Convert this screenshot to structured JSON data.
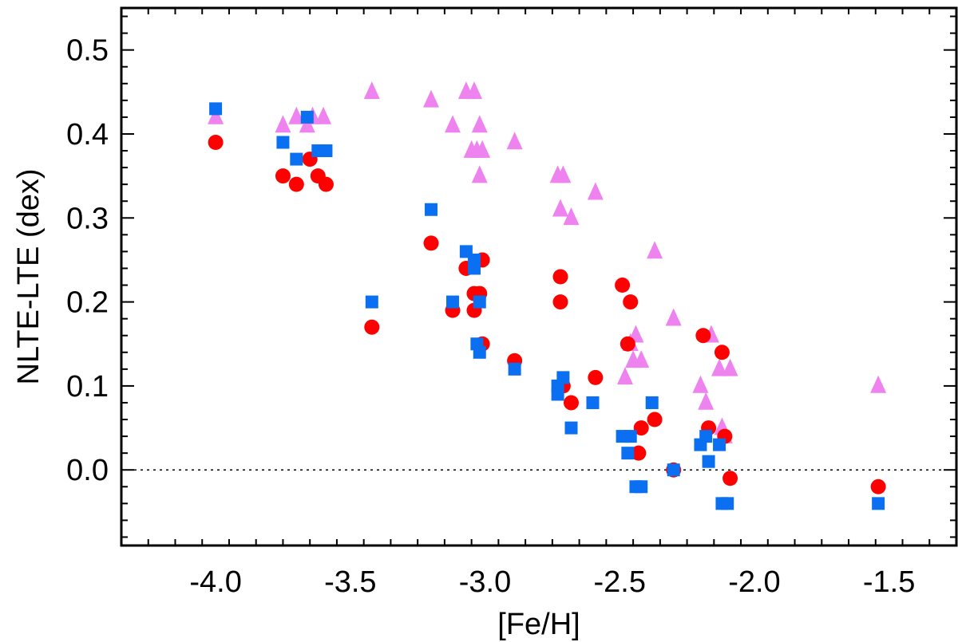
{
  "chart_data": {
    "type": "scatter",
    "title": "",
    "xlabel": "[Fe/H]",
    "ylabel": "NLTE-LTE (dex)",
    "xlim": [
      -4.35,
      -1.25
    ],
    "ylim": [
      -0.09,
      0.55
    ],
    "xticks": [
      -4.0,
      -3.5,
      -3.0,
      -2.5,
      -2.0,
      -1.5
    ],
    "xtick_labels": [
      "-4.0",
      "-3.5",
      "-3.0",
      "-2.5",
      "-2.0",
      "-1.5"
    ],
    "yticks": [
      0.0,
      0.1,
      0.2,
      0.3,
      0.4,
      0.5
    ],
    "ytick_labels": [
      "0.0",
      "0.1",
      "0.2",
      "0.3",
      "0.4",
      "0.5"
    ],
    "reference_line": 0.0,
    "series": [
      {
        "name": "triangles",
        "marker": "triangle",
        "color": "#ee82ee",
        "points": [
          [
            -4.0,
            0.42
          ],
          [
            -3.75,
            0.41
          ],
          [
            -3.7,
            0.42
          ],
          [
            -3.66,
            0.41
          ],
          [
            -3.64,
            0.42
          ],
          [
            -3.6,
            0.42
          ],
          [
            -3.42,
            0.45
          ],
          [
            -3.2,
            0.44
          ],
          [
            -3.12,
            0.41
          ],
          [
            -3.07,
            0.45
          ],
          [
            -3.05,
            0.38
          ],
          [
            -3.04,
            0.45
          ],
          [
            -3.03,
            0.38
          ],
          [
            -3.02,
            0.41
          ],
          [
            -3.02,
            0.35
          ],
          [
            -3.01,
            0.38
          ],
          [
            -2.89,
            0.39
          ],
          [
            -2.73,
            0.35
          ],
          [
            -2.72,
            0.31
          ],
          [
            -2.71,
            0.35
          ],
          [
            -2.68,
            0.3
          ],
          [
            -2.59,
            0.33
          ],
          [
            -2.48,
            0.11
          ],
          [
            -2.46,
            0.15
          ],
          [
            -2.45,
            0.13
          ],
          [
            -2.44,
            0.16
          ],
          [
            -2.42,
            0.13
          ],
          [
            -2.37,
            0.26
          ],
          [
            -2.3,
            0.18
          ],
          [
            -2.2,
            0.1
          ],
          [
            -2.18,
            0.08
          ],
          [
            -2.16,
            0.16
          ],
          [
            -2.13,
            0.12
          ],
          [
            -2.12,
            0.05
          ],
          [
            -2.11,
            0.04
          ],
          [
            -2.09,
            0.12
          ],
          [
            -1.54,
            0.1
          ]
        ]
      },
      {
        "name": "circles",
        "marker": "circle",
        "color": "#ff0000",
        "points": [
          [
            -4.0,
            0.39
          ],
          [
            -3.75,
            0.35
          ],
          [
            -3.7,
            0.34
          ],
          [
            -3.65,
            0.37
          ],
          [
            -3.62,
            0.35
          ],
          [
            -3.59,
            0.34
          ],
          [
            -3.42,
            0.17
          ],
          [
            -3.2,
            0.27
          ],
          [
            -3.12,
            0.19
          ],
          [
            -3.07,
            0.24
          ],
          [
            -3.04,
            0.21
          ],
          [
            -3.04,
            0.19
          ],
          [
            -3.02,
            0.21
          ],
          [
            -3.01,
            0.25
          ],
          [
            -3.01,
            0.15
          ],
          [
            -2.89,
            0.13
          ],
          [
            -2.72,
            0.23
          ],
          [
            -2.72,
            0.2
          ],
          [
            -2.71,
            0.1
          ],
          [
            -2.68,
            0.08
          ],
          [
            -2.59,
            0.11
          ],
          [
            -2.49,
            0.22
          ],
          [
            -2.46,
            0.2
          ],
          [
            -2.47,
            0.15
          ],
          [
            -2.43,
            0.02
          ],
          [
            -2.42,
            0.05
          ],
          [
            -2.37,
            0.06
          ],
          [
            -2.3,
            0.0
          ],
          [
            -2.19,
            0.16
          ],
          [
            -2.17,
            0.05
          ],
          [
            -2.12,
            0.14
          ],
          [
            -2.11,
            0.04
          ],
          [
            -2.09,
            -0.01
          ],
          [
            -1.54,
            -0.02
          ]
        ]
      },
      {
        "name": "squares",
        "marker": "square",
        "color": "#0a6ff0",
        "points": [
          [
            -4.0,
            0.43
          ],
          [
            -3.75,
            0.39
          ],
          [
            -3.7,
            0.37
          ],
          [
            -3.66,
            0.42
          ],
          [
            -3.62,
            0.38
          ],
          [
            -3.59,
            0.38
          ],
          [
            -3.42,
            0.2
          ],
          [
            -3.2,
            0.31
          ],
          [
            -3.12,
            0.2
          ],
          [
            -3.07,
            0.26
          ],
          [
            -3.04,
            0.25
          ],
          [
            -3.04,
            0.24
          ],
          [
            -3.03,
            0.15
          ],
          [
            -3.02,
            0.2
          ],
          [
            -3.02,
            0.14
          ],
          [
            -2.89,
            0.12
          ],
          [
            -2.73,
            0.09
          ],
          [
            -2.73,
            0.1
          ],
          [
            -2.71,
            0.11
          ],
          [
            -2.68,
            0.05
          ],
          [
            -2.6,
            0.08
          ],
          [
            -2.49,
            0.04
          ],
          [
            -2.47,
            0.02
          ],
          [
            -2.46,
            0.04
          ],
          [
            -2.44,
            -0.02
          ],
          [
            -2.42,
            -0.02
          ],
          [
            -2.38,
            0.08
          ],
          [
            -2.3,
            0.0
          ],
          [
            -2.2,
            0.03
          ],
          [
            -2.18,
            0.04
          ],
          [
            -2.17,
            0.01
          ],
          [
            -2.13,
            0.03
          ],
          [
            -2.12,
            -0.04
          ],
          [
            -2.1,
            -0.04
          ],
          [
            -1.54,
            -0.04
          ]
        ]
      }
    ]
  }
}
